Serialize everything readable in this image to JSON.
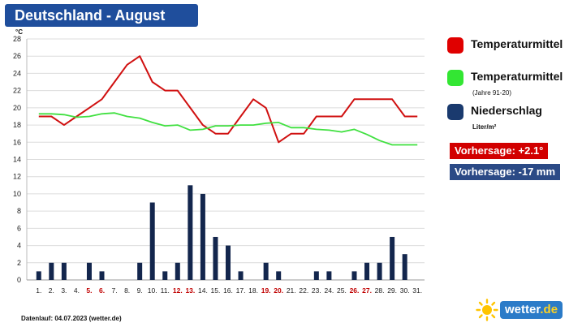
{
  "header": {
    "title": "Deutschland - August"
  },
  "legend": [
    {
      "label": "Temperaturmittel",
      "sub": "",
      "color": "#e00000"
    },
    {
      "label": "Temperaturmittel",
      "sub": "(Jahre 91-20)",
      "color": "#33e633"
    },
    {
      "label": "Niederschlag",
      "sub": "Liter/m²",
      "color": "#1a3a6e"
    }
  ],
  "forecast": {
    "temperature": "Vorhersage: +2.1°",
    "temperature_color": "#d20000",
    "precipitation": "Vorhersage: -17 mm",
    "precipitation_color": "#2b4a86"
  },
  "footer": {
    "text": "Datenlauf: 04.07.2023 (wetter.de)"
  },
  "logo": {
    "name": "wetter",
    "tld": ".de"
  },
  "chart_data": {
    "type": "bar+line",
    "y_unit": "°C",
    "ylim": [
      0,
      28
    ],
    "yticks": [
      0,
      2,
      4,
      6,
      8,
      10,
      12,
      14,
      16,
      18,
      20,
      22,
      24,
      26,
      28
    ],
    "grid": true,
    "categories": [
      "1.",
      "2.",
      "3.",
      "4.",
      "5.",
      "6.",
      "7.",
      "8.",
      "9.",
      "10.",
      "11.",
      "12.",
      "13.",
      "14.",
      "15.",
      "16.",
      "17.",
      "18.",
      "19.",
      "20.",
      "21.",
      "22.",
      "23.",
      "24.",
      "25.",
      "26.",
      "27.",
      "28.",
      "29.",
      "30.",
      "31."
    ],
    "weekend_days": [
      "5.",
      "6.",
      "12.",
      "13.",
      "19.",
      "20.",
      "26.",
      "27."
    ],
    "weekend_color": "#c00000",
    "series": [
      {
        "name": "Temperaturmittel",
        "type": "line",
        "color": "#d01010",
        "values": [
          19,
          19,
          18,
          19,
          20,
          21,
          23,
          25,
          26,
          23,
          22,
          22,
          20,
          18,
          17,
          17,
          19,
          21,
          20,
          16,
          17,
          17,
          19,
          19,
          19,
          21,
          21,
          21,
          21,
          19,
          19
        ]
      },
      {
        "name": "Temperaturmittel (Jahre 91-20)",
        "type": "line",
        "color": "#40e040",
        "values": [
          19.3,
          19.3,
          19.2,
          18.9,
          19.0,
          19.3,
          19.4,
          19.0,
          18.8,
          18.3,
          17.9,
          18.0,
          17.4,
          17.5,
          17.9,
          17.9,
          18.0,
          18.0,
          18.2,
          18.3,
          17.7,
          17.7,
          17.5,
          17.4,
          17.2,
          17.5,
          16.9,
          16.2,
          15.7,
          15.7,
          15.7
        ]
      },
      {
        "name": "Niederschlag",
        "type": "bar",
        "color": "#13264d",
        "values": [
          1,
          2,
          2,
          0,
          2,
          1,
          0,
          0,
          2,
          9,
          1,
          2,
          11,
          10,
          5,
          4,
          1,
          0,
          2,
          1,
          0,
          0,
          1,
          1,
          0,
          1,
          2,
          2,
          5,
          3,
          0
        ]
      }
    ]
  }
}
